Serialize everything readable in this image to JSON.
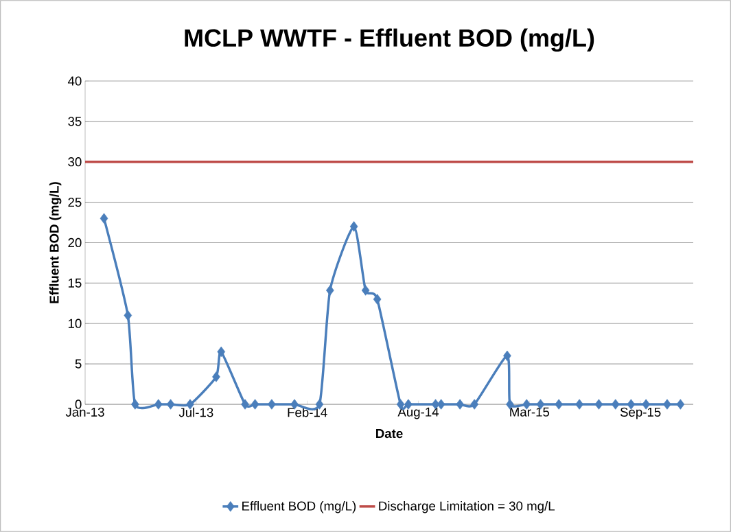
{
  "chart_data": {
    "type": "line",
    "title": "MCLP WWTF - Effluent BOD (mg/L)",
    "xlabel": "Date",
    "ylabel": "Effluent BOD (mg/L)",
    "x": [
      "2013-02-04",
      "2013-03-19",
      "2013-04-01",
      "2013-05-13",
      "2013-06-04",
      "2013-07-09",
      "2013-08-25",
      "2013-09-03",
      "2013-10-16",
      "2013-11-03",
      "2013-12-03",
      "2014-01-13",
      "2014-02-27",
      "2014-03-18",
      "2014-04-30",
      "2014-05-21",
      "2014-06-11",
      "2014-07-23",
      "2014-08-06",
      "2014-09-24",
      "2014-10-04",
      "2014-11-07",
      "2014-12-03",
      "2015-01-31",
      "2015-02-05",
      "2015-03-07",
      "2015-04-01",
      "2015-05-04",
      "2015-06-10",
      "2015-07-15",
      "2015-08-14",
      "2015-09-11",
      "2015-10-08",
      "2015-11-15",
      "2015-12-09"
    ],
    "series": [
      {
        "name": "Effluent BOD (mg/L)",
        "color": "#4a7ebb",
        "values": [
          23,
          11,
          0,
          0,
          0,
          0,
          3.4,
          6.5,
          0,
          0,
          0,
          0,
          0,
          14.1,
          22,
          14.1,
          13,
          0,
          0,
          0,
          0,
          0,
          0,
          6,
          0,
          0,
          0,
          0,
          0,
          0,
          0,
          0,
          0,
          0,
          0
        ]
      }
    ],
    "ref_lines": [
      {
        "axis": "y",
        "value": 30,
        "label": "Discharge Limitation = 30 mg/L",
        "color": "#be4b48"
      }
    ],
    "xlim": [
      "2013-01-01",
      "2016-01-01"
    ],
    "xticks": [
      {
        "value": "2013-01-01",
        "label": "Jan-13"
      },
      {
        "value": "2013-07-20",
        "label": "Jul-13"
      },
      {
        "value": "2014-02-05",
        "label": "Feb-14"
      },
      {
        "value": "2014-08-24",
        "label": "Aug-14"
      },
      {
        "value": "2015-03-12",
        "label": "Mar-15"
      },
      {
        "value": "2015-09-28",
        "label": "Sep-15"
      }
    ],
    "ylim": [
      0,
      40
    ],
    "yticks": [
      0,
      5,
      10,
      15,
      20,
      25,
      30,
      35,
      40
    ],
    "grid": "y",
    "legend": "bottom",
    "marker": "diamond",
    "line_style": "solid"
  }
}
